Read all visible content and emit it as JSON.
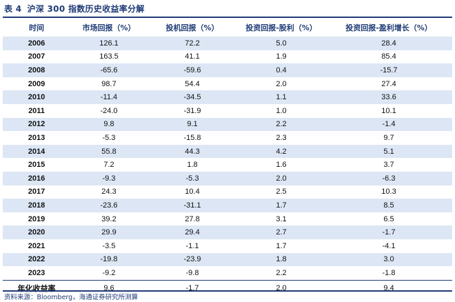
{
  "title": {
    "number": "表 4",
    "text": "沪深 300 指数历史收益率分解"
  },
  "table": {
    "headers": [
      "时间",
      "市场回报（%）",
      "投机回报（%）",
      "投资回报-股利（%）",
      "投资回报-盈利增长（%）"
    ],
    "rows": [
      [
        "2006",
        "126.1",
        "72.2",
        "5.0",
        "28.4"
      ],
      [
        "2007",
        "163.5",
        "41.1",
        "1.9",
        "85.4"
      ],
      [
        "2008",
        "-65.6",
        "-59.6",
        "0.4",
        "-15.7"
      ],
      [
        "2009",
        "98.7",
        "54.4",
        "2.0",
        "27.4"
      ],
      [
        "2010",
        "-11.4",
        "-34.5",
        "1.1",
        "33.6"
      ],
      [
        "2011",
        "-24.0",
        "-31.9",
        "1.0",
        "10.1"
      ],
      [
        "2012",
        "9.8",
        "9.1",
        "2.2",
        "-1.4"
      ],
      [
        "2013",
        "-5.3",
        "-15.8",
        "2.3",
        "9.7"
      ],
      [
        "2014",
        "55.8",
        "44.3",
        "4.2",
        "5.1"
      ],
      [
        "2015",
        "7.2",
        "1.8",
        "1.6",
        "3.7"
      ],
      [
        "2016",
        "-9.3",
        "-5.3",
        "2.0",
        "-6.3"
      ],
      [
        "2017",
        "24.3",
        "10.4",
        "2.5",
        "10.3"
      ],
      [
        "2018",
        "-23.6",
        "-31.1",
        "1.7",
        "8.5"
      ],
      [
        "2019",
        "39.2",
        "27.8",
        "3.1",
        "6.5"
      ],
      [
        "2020",
        "29.9",
        "29.4",
        "2.7",
        "-1.7"
      ],
      [
        "2021",
        "-3.5",
        "-1.1",
        "1.7",
        "-4.1"
      ],
      [
        "2022",
        "-19.8",
        "-23.9",
        "1.8",
        "3.0"
      ],
      [
        "2023",
        "-9.2",
        "-9.8",
        "2.2",
        "-1.8"
      ]
    ],
    "summary": [
      "年化收益率",
      "9.6",
      "-1.7",
      "2.0",
      "9.4"
    ]
  },
  "source": "资料来源：Bloomberg，海通证券研究所测算",
  "colors": {
    "accent": "#1f3b76",
    "stripe": "#dce6f5"
  }
}
